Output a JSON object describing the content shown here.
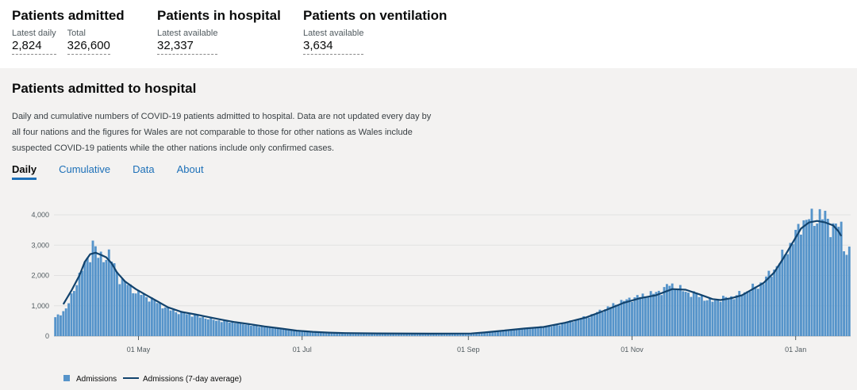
{
  "headline": {
    "admitted": {
      "title": "Patients admitted",
      "daily_label": "Latest daily",
      "daily_value": "2,824",
      "total_label": "Total",
      "total_value": "326,600"
    },
    "in_hospital": {
      "title": "Patients in hospital",
      "label": "Latest available",
      "value": "32,337"
    },
    "ventilation": {
      "title": "Patients on ventilation",
      "label": "Latest available",
      "value": "3,634"
    }
  },
  "card": {
    "title": "Patients admitted to hospital",
    "description": "Daily and cumulative numbers of COVID-19 patients admitted to hospital. Data are not updated every day by all four nations and the figures for Wales are not comparable to those for other nations as Wales include suspected COVID-19 patients while the other nations include only confirmed cases.",
    "tabs": [
      "Daily",
      "Cumulative",
      "Data",
      "About"
    ]
  },
  "colors": {
    "bar": "#5694ca",
    "line": "#12436d",
    "tab": "#1d70b8"
  },
  "chart_data": {
    "type": "bar",
    "title": "",
    "xlabel": "",
    "ylabel": "",
    "ylim": [
      0,
      4000
    ],
    "y_ticks": [
      {
        "value": 0,
        "label": "0"
      },
      {
        "value": 1000,
        "label": "1,000"
      },
      {
        "value": 2000,
        "label": "2,000"
      },
      {
        "value": 3000,
        "label": "3,000"
      },
      {
        "value": 4000,
        "label": "4,000"
      }
    ],
    "x_ticks": [
      {
        "day": 31,
        "label": "01 May"
      },
      {
        "day": 92,
        "label": "01 Jul"
      },
      {
        "day": 154,
        "label": "01 Sep"
      },
      {
        "day": 215,
        "label": "01 Nov"
      },
      {
        "day": 276,
        "label": "01 Jan"
      }
    ],
    "x_start_date": "2020-03-31",
    "x_end_date": "2021-01-16",
    "legend": [
      {
        "name": "Admissions",
        "kind": "bar"
      },
      {
        "name": "Admissions (7-day average)",
        "kind": "line"
      }
    ],
    "series": [
      {
        "name": "Admissions",
        "kind": "bar",
        "anchors": [
          [
            0,
            600
          ],
          [
            2,
            750
          ],
          [
            4,
            900
          ],
          [
            6,
            1300
          ],
          [
            8,
            1800
          ],
          [
            10,
            2200
          ],
          [
            12,
            2500
          ],
          [
            13,
            2700
          ],
          [
            14,
            3100
          ],
          [
            15,
            2900
          ],
          [
            16,
            2600
          ],
          [
            18,
            2600
          ],
          [
            20,
            2700
          ],
          [
            22,
            2300
          ],
          [
            24,
            1900
          ],
          [
            27,
            1700
          ],
          [
            30,
            1450
          ],
          [
            33,
            1350
          ],
          [
            36,
            1200
          ],
          [
            39,
            1050
          ],
          [
            42,
            900
          ],
          [
            46,
            780
          ],
          [
            50,
            720
          ],
          [
            55,
            620
          ],
          [
            60,
            520
          ],
          [
            65,
            470
          ],
          [
            70,
            400
          ],
          [
            75,
            340
          ],
          [
            80,
            280
          ],
          [
            85,
            230
          ],
          [
            90,
            180
          ],
          [
            95,
            150
          ],
          [
            100,
            125
          ],
          [
            105,
            110
          ],
          [
            110,
            100
          ],
          [
            120,
            90
          ],
          [
            130,
            85
          ],
          [
            140,
            80
          ],
          [
            150,
            80
          ],
          [
            155,
            85
          ],
          [
            160,
            120
          ],
          [
            165,
            160
          ],
          [
            170,
            210
          ],
          [
            175,
            250
          ],
          [
            180,
            290
          ],
          [
            185,
            330
          ],
          [
            190,
            430
          ],
          [
            195,
            550
          ],
          [
            200,
            700
          ],
          [
            205,
            900
          ],
          [
            210,
            1100
          ],
          [
            215,
            1250
          ],
          [
            220,
            1350
          ],
          [
            223,
            1400
          ],
          [
            226,
            1500
          ],
          [
            229,
            1700
          ],
          [
            232,
            1600
          ],
          [
            235,
            1450
          ],
          [
            238,
            1400
          ],
          [
            241,
            1300
          ],
          [
            244,
            1150
          ],
          [
            247,
            1200
          ],
          [
            250,
            1250
          ],
          [
            253,
            1300
          ],
          [
            256,
            1400
          ],
          [
            259,
            1550
          ],
          [
            262,
            1650
          ],
          [
            265,
            1900
          ],
          [
            268,
            2200
          ],
          [
            271,
            2600
          ],
          [
            274,
            3000
          ],
          [
            277,
            3500
          ],
          [
            279,
            3800
          ],
          [
            281,
            3900
          ],
          [
            283,
            3800
          ],
          [
            285,
            4050
          ],
          [
            287,
            3900
          ],
          [
            289,
            3600
          ],
          [
            291,
            3700
          ],
          [
            293,
            3500
          ],
          [
            294,
            3000
          ],
          [
            295,
            2800
          ],
          [
            296,
            2824
          ]
        ]
      },
      {
        "name": "Admissions (7-day average)",
        "kind": "line",
        "anchors": [
          [
            3,
            1050
          ],
          [
            6,
            1500
          ],
          [
            9,
            2000
          ],
          [
            11,
            2450
          ],
          [
            13,
            2700
          ],
          [
            15,
            2750
          ],
          [
            17,
            2680
          ],
          [
            19,
            2600
          ],
          [
            21,
            2400
          ],
          [
            23,
            2100
          ],
          [
            26,
            1800
          ],
          [
            30,
            1550
          ],
          [
            34,
            1350
          ],
          [
            38,
            1150
          ],
          [
            42,
            950
          ],
          [
            47,
            800
          ],
          [
            52,
            720
          ],
          [
            57,
            630
          ],
          [
            62,
            540
          ],
          [
            67,
            460
          ],
          [
            72,
            400
          ],
          [
            78,
            320
          ],
          [
            84,
            250
          ],
          [
            90,
            180
          ],
          [
            96,
            140
          ],
          [
            102,
            115
          ],
          [
            108,
            100
          ],
          [
            120,
            90
          ],
          [
            140,
            80
          ],
          [
            155,
            85
          ],
          [
            160,
            120
          ],
          [
            167,
            180
          ],
          [
            175,
            250
          ],
          [
            182,
            300
          ],
          [
            190,
            440
          ],
          [
            198,
            620
          ],
          [
            205,
            850
          ],
          [
            212,
            1100
          ],
          [
            218,
            1250
          ],
          [
            224,
            1350
          ],
          [
            230,
            1550
          ],
          [
            235,
            1530
          ],
          [
            240,
            1380
          ],
          [
            245,
            1220
          ],
          [
            248,
            1190
          ],
          [
            252,
            1250
          ],
          [
            256,
            1350
          ],
          [
            260,
            1550
          ],
          [
            264,
            1750
          ],
          [
            268,
            2100
          ],
          [
            272,
            2650
          ],
          [
            275,
            3100
          ],
          [
            278,
            3550
          ],
          [
            281,
            3750
          ],
          [
            284,
            3800
          ],
          [
            287,
            3750
          ],
          [
            290,
            3650
          ],
          [
            292,
            3450
          ],
          [
            293,
            3300
          ]
        ]
      }
    ]
  }
}
